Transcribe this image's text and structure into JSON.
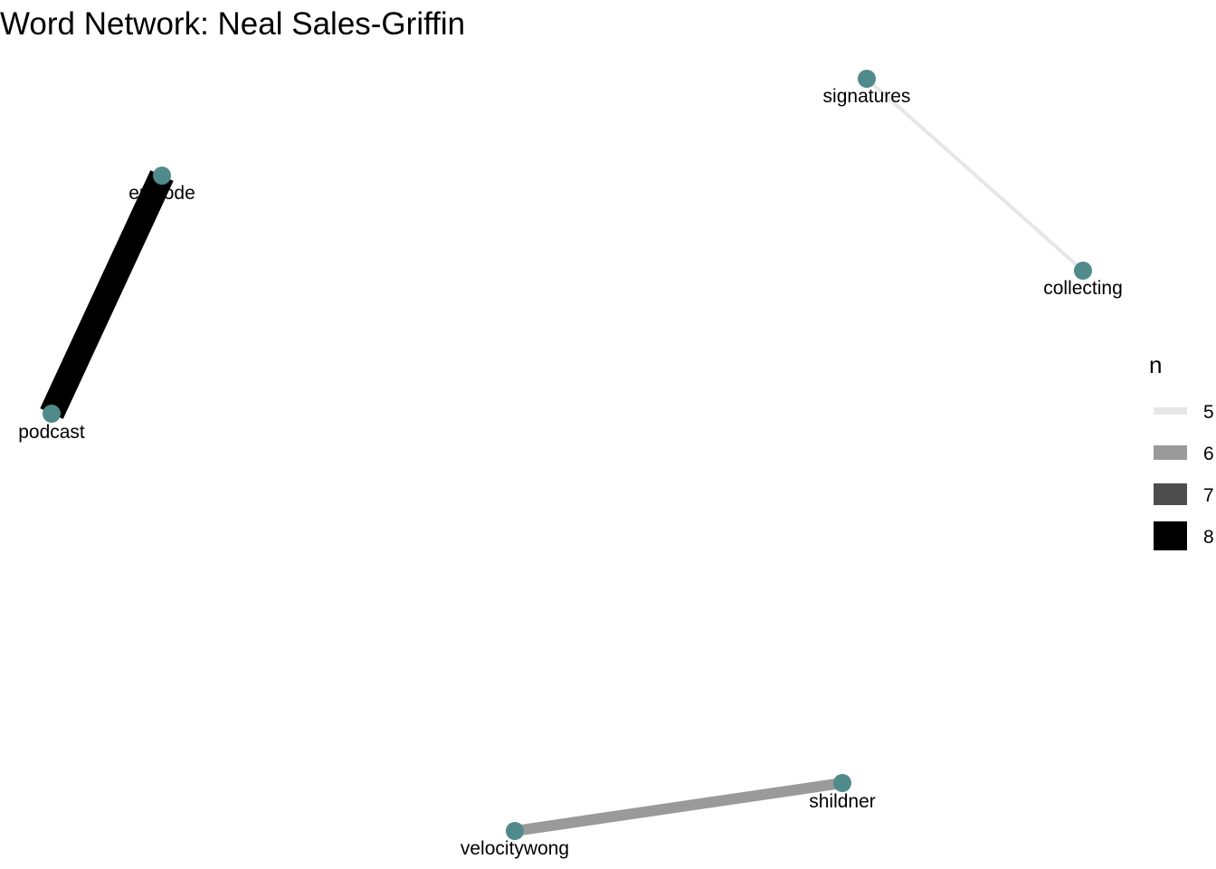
{
  "title": "Word Network: Neal Sales-Griffin",
  "colors": {
    "node": "#508a8a",
    "label": "#000000",
    "background": "#ffffff"
  },
  "graph": {
    "nodes": [
      {
        "id": "episode",
        "label": "episode"
      },
      {
        "id": "podcast",
        "label": "podcast"
      },
      {
        "id": "signatures",
        "label": "signatures"
      },
      {
        "id": "collecting",
        "label": "collecting"
      },
      {
        "id": "velocitywong",
        "label": "velocitywong"
      },
      {
        "id": "shildner",
        "label": "shildner"
      }
    ],
    "edges": [
      {
        "from": "episode",
        "to": "podcast",
        "n": 8
      },
      {
        "from": "signatures",
        "to": "collecting",
        "n": 5
      },
      {
        "from": "velocitywong",
        "to": "shildner",
        "n": 6
      }
    ]
  },
  "legend": {
    "title": "n",
    "entries": [
      {
        "value": 5,
        "label": "5",
        "color": "#e6e6e6"
      },
      {
        "value": 6,
        "label": "6",
        "color": "#9a9a9a"
      },
      {
        "value": 7,
        "label": "7",
        "color": "#4d4d4d"
      },
      {
        "value": 8,
        "label": "8",
        "color": "#000000"
      }
    ]
  }
}
